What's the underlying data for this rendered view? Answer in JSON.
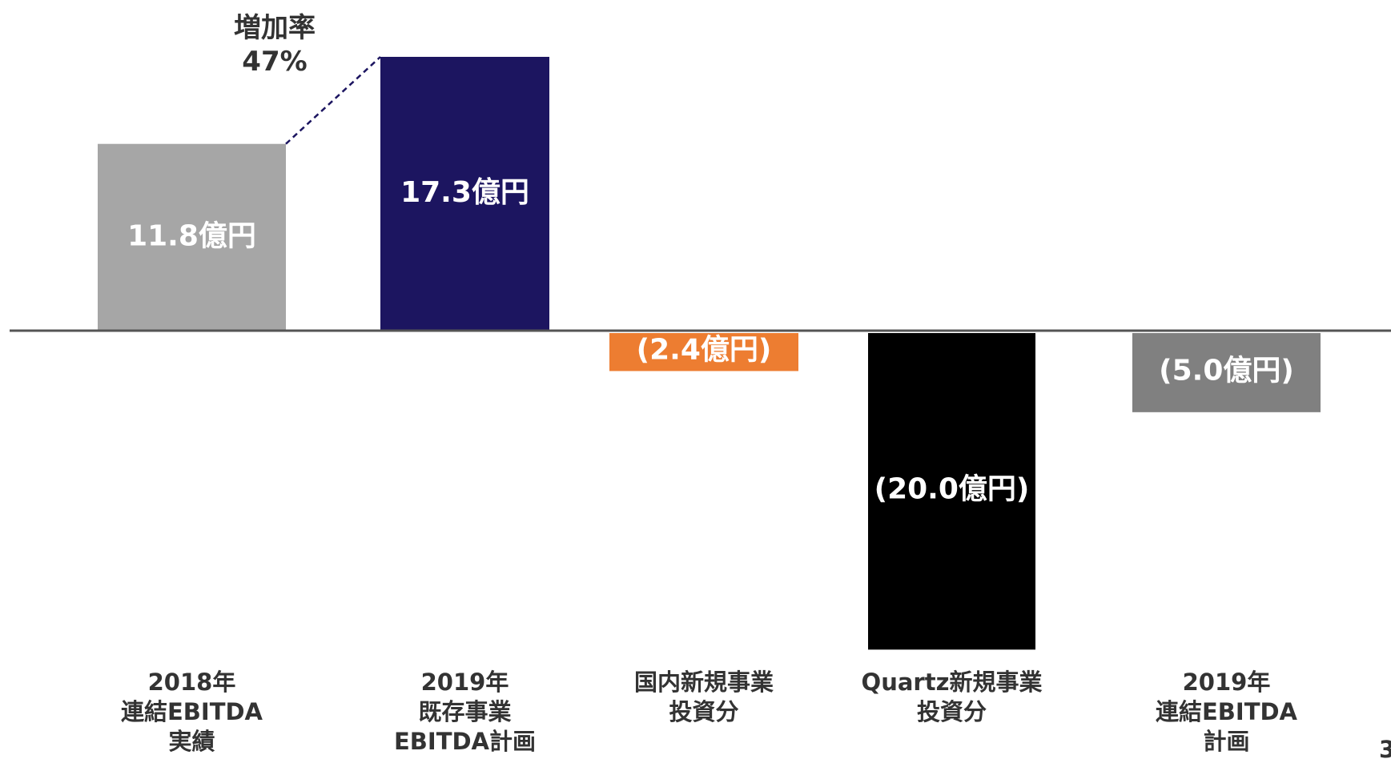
{
  "chart_data": {
    "type": "bar",
    "categories": [
      "2018年\n連結EBITDA\n実績",
      "2019年\n既存事業\nEBITDA計画",
      "国内新規事業\n投資分",
      "Quartz新規事業\n投資分",
      "2019年\n連結EBITDA\n計画"
    ],
    "values": [
      11.8,
      17.3,
      -2.4,
      -20.0,
      -5.0
    ],
    "value_labels": [
      "11.8億円",
      "17.3億円",
      "(2.4億円)",
      "(20.0億円)",
      "(5.0億円)"
    ],
    "colors": [
      "#a6a6a6",
      "#1c1560",
      "#ed7d31",
      "#000000",
      "#808080"
    ],
    "annotation": "増加率\n47%",
    "page_number": "3"
  }
}
